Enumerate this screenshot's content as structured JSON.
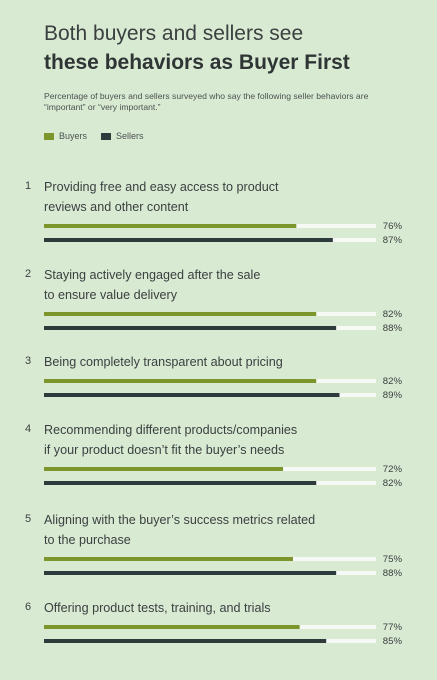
{
  "title_line1": "Both buyers and sellers see",
  "title_line2": "these behaviors as Buyer First",
  "subtitle": "Percentage of buyers and sellers surveyed who say the following seller behaviors are “important” or “very important.”",
  "legend": {
    "buyers": "Buyers",
    "sellers": "Sellers"
  },
  "colors": {
    "buyers": "#7d962b",
    "sellers": "#2f3a3d",
    "track": "#f7f9f5",
    "background": "#d9ead3"
  },
  "chart_data": {
    "type": "bar",
    "orientation": "horizontal",
    "title": "Both buyers and sellers see these behaviors as Buyer First",
    "categories": [
      {
        "num": "1",
        "lines": [
          "Providing free and easy access to product",
          "reviews and other content"
        ]
      },
      {
        "num": "2",
        "lines": [
          "Staying actively engaged after the sale",
          "to ensure value delivery"
        ]
      },
      {
        "num": "3",
        "lines": [
          "Being completely transparent about pricing"
        ]
      },
      {
        "num": "4",
        "lines": [
          "Recommending different products/companies",
          "if your product doesn’t fit the buyer’s needs"
        ]
      },
      {
        "num": "5",
        "lines": [
          "Aligning with the buyer’s success metrics related",
          "to the purchase"
        ]
      },
      {
        "num": "6",
        "lines": [
          "Offering product tests, training, and trials"
        ]
      }
    ],
    "series": [
      {
        "name": "Buyers",
        "values": [
          76,
          82,
          82,
          72,
          75,
          77
        ]
      },
      {
        "name": "Sellers",
        "values": [
          87,
          88,
          89,
          82,
          88,
          85
        ]
      }
    ],
    "value_suffix": "%",
    "xlim": [
      0,
      100
    ],
    "grid": false,
    "legend_position": "top-left"
  }
}
